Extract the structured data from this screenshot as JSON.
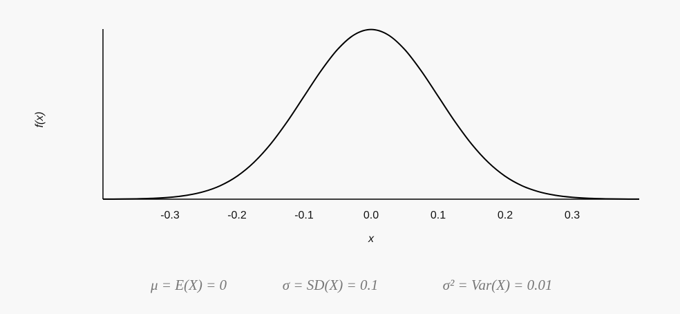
{
  "chart_data": {
    "type": "line",
    "x": [
      -0.4,
      -0.375,
      -0.35,
      -0.325,
      -0.3,
      -0.275,
      -0.25,
      -0.225,
      -0.2,
      -0.175,
      -0.15,
      -0.125,
      -0.1,
      -0.075,
      -0.05,
      -0.025,
      0,
      0.025,
      0.05,
      0.075,
      0.1,
      0.125,
      0.15,
      0.175,
      0.2,
      0.225,
      0.25,
      0.275,
      0.3,
      0.325,
      0.35,
      0.375,
      0.4
    ],
    "series": [
      {
        "color": "#000000",
        "values": [
          0.0013,
          0.0035,
          0.0087,
          0.0203,
          0.0443,
          0.091,
          0.1753,
          0.3174,
          0.5399,
          0.8628,
          1.2952,
          1.8265,
          2.4197,
          3.0114,
          3.5207,
          3.8667,
          3.9894,
          3.8667,
          3.5207,
          3.0114,
          2.4197,
          1.8265,
          1.2952,
          0.8628,
          0.5399,
          0.3174,
          0.1753,
          0.091,
          0.0443,
          0.0203,
          0.0087,
          0.0035,
          0.0013
        ]
      }
    ],
    "xlim": [
      -0.4,
      0.4
    ],
    "ylim": [
      0,
      4
    ],
    "xticks": [
      -0.3,
      -0.2,
      -0.1,
      {
        "value": 0,
        "label": "0.0"
      },
      0.1,
      0.2,
      0.3
    ],
    "x_label": "x",
    "y_label": "f(x)",
    "annotations": [
      "μ = E(X) = 0",
      "σ = SD(X) = 0.1",
      "σ² = Var(X) = 0.01"
    ]
  }
}
